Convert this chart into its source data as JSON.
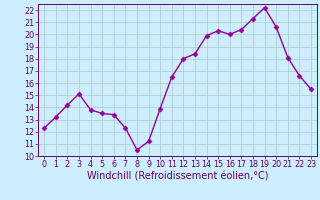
{
  "x": [
    0,
    1,
    2,
    3,
    4,
    5,
    6,
    7,
    8,
    9,
    10,
    11,
    12,
    13,
    14,
    15,
    16,
    17,
    18,
    19,
    20,
    21,
    22,
    23
  ],
  "y": [
    12.3,
    13.2,
    14.2,
    15.1,
    13.8,
    13.5,
    13.4,
    12.3,
    10.5,
    11.2,
    13.9,
    16.5,
    18.0,
    18.4,
    19.9,
    20.3,
    20.0,
    20.4,
    21.3,
    22.2,
    20.6,
    18.1,
    16.6,
    15.5
  ],
  "line_color": "#990099",
  "marker": "D",
  "marker_size": 2.5,
  "bg_color": "#cceeff",
  "grid_color": "#aacccc",
  "xlabel": "Windchill (Refroidissement éolien,°C)",
  "xlim": [
    -0.5,
    23.5
  ],
  "ylim": [
    10,
    22.5
  ],
  "yticks": [
    10,
    11,
    12,
    13,
    14,
    15,
    16,
    17,
    18,
    19,
    20,
    21,
    22
  ],
  "xticks": [
    0,
    1,
    2,
    3,
    4,
    5,
    6,
    7,
    8,
    9,
    10,
    11,
    12,
    13,
    14,
    15,
    16,
    17,
    18,
    19,
    20,
    21,
    22,
    23
  ],
  "axis_color": "#660066",
  "tick_fontsize": 5.8,
  "xlabel_fontsize": 7.0,
  "linewidth": 1.0
}
